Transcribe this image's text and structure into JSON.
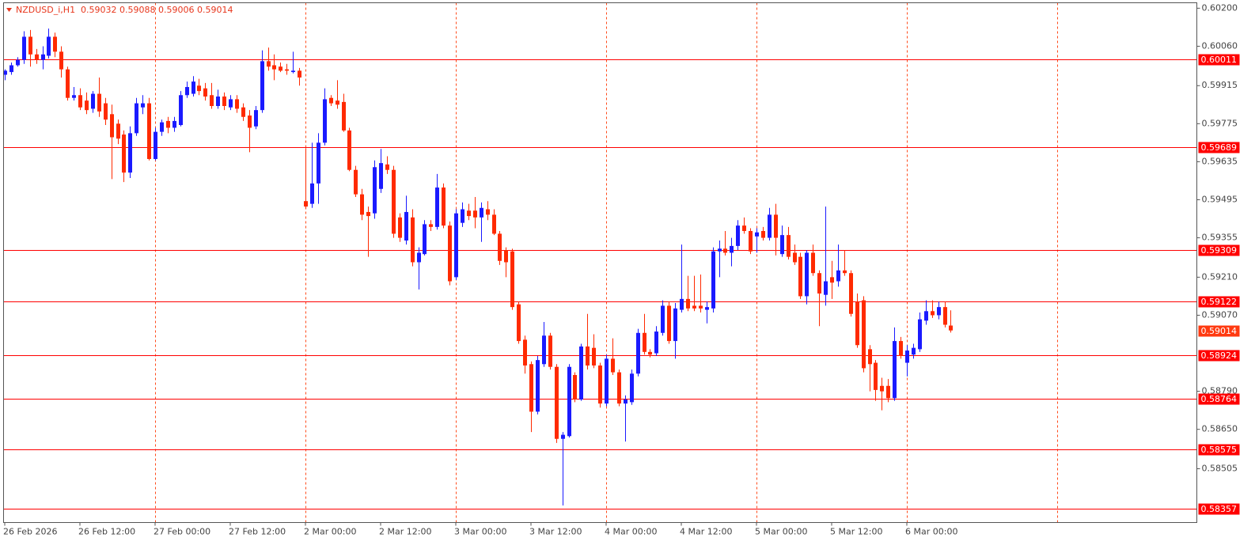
{
  "chart_data": {
    "type": "candlestick",
    "title": "NZDUSD_i,H1  0.59032 0.59088 0.59006 0.59014",
    "up_color": "#1a1aff",
    "down_color": "#ff2a00",
    "grid_color": "#ff4a1a",
    "level_color": "#ff0000",
    "last_price": 0.59014,
    "last_price_color": "#ff3a10",
    "levels": [
      0.60011,
      0.59689,
      0.59309,
      0.59122,
      0.58924,
      0.58764,
      0.58575,
      0.58357
    ],
    "ylim": [
      0.58307,
      0.6022
    ],
    "yticks": [
      {
        "value": 0.602,
        "label": "0.60200"
      },
      {
        "value": 0.6006,
        "label": "0.60060"
      },
      0.59915,
      0.59775,
      0.59635,
      0.59495,
      0.59355,
      {
        "value": 0.5921,
        "label": "0.59210"
      },
      {
        "value": 0.5907,
        "label": "0.59070"
      },
      {
        "value": 0.5879,
        "label": "0.58790"
      },
      {
        "value": 0.5865,
        "label": "0.58650"
      },
      0.58505
    ],
    "categories": [
      "26 Feb 2026",
      null,
      null,
      null,
      null,
      null,
      null,
      null,
      null,
      null,
      null,
      null,
      "26 Feb 12:00",
      null,
      null,
      null,
      null,
      null,
      null,
      null,
      null,
      null,
      null,
      null,
      "27 Feb 00:00",
      null,
      null,
      null,
      null,
      null,
      null,
      null,
      null,
      null,
      null,
      null,
      "27 Feb 12:00",
      null,
      null,
      null,
      null,
      null,
      null,
      null,
      null,
      null,
      null,
      null,
      "2 Mar 00:00",
      null,
      null,
      null,
      null,
      null,
      null,
      null,
      null,
      null,
      null,
      null,
      "2 Mar 12:00",
      null,
      null,
      null,
      null,
      null,
      null,
      null,
      null,
      null,
      null,
      null,
      "3 Mar 00:00",
      null,
      null,
      null,
      null,
      null,
      null,
      null,
      null,
      null,
      null,
      null,
      "3 Mar 12:00",
      null,
      null,
      null,
      null,
      null,
      null,
      null,
      null,
      null,
      null,
      null,
      "4 Mar 00:00",
      null,
      null,
      null,
      null,
      null,
      null,
      null,
      null,
      null,
      null,
      null,
      "4 Mar 12:00",
      null,
      null,
      null,
      null,
      null,
      null,
      null,
      null,
      null,
      null,
      null,
      "5 Mar 00:00",
      null,
      null,
      null,
      null,
      null,
      null,
      null,
      null,
      null,
      null,
      null,
      "5 Mar 12:00",
      null,
      null,
      null,
      null,
      null,
      null,
      null,
      null,
      null,
      null,
      null,
      "6 Mar 00:00",
      null,
      null,
      null,
      null,
      null,
      null,
      null
    ],
    "open": [
      0.59955,
      0.59965,
      0.5999,
      0.6001,
      0.60095,
      0.6003,
      0.6001,
      0.60025,
      0.60095,
      0.6004,
      0.59975,
      0.5987,
      0.5988,
      0.5986,
      0.5983,
      0.59885,
      0.5985,
      0.5981,
      0.59775,
      0.59735,
      0.59595,
      0.5974,
      0.59835,
      0.5985,
      0.59645,
      0.59745,
      0.59785,
      0.5976,
      0.5977,
      0.5988,
      0.59885,
      0.59915,
      0.59905,
      0.5988,
      0.5984,
      0.59875,
      0.59835,
      0.59865,
      0.59835,
      0.59805,
      0.59765,
      0.59825,
      0.60005,
      0.5999,
      0.59985,
      0.59975,
      0.59965,
      0.5997,
      0.5949,
      0.5948,
      0.59555,
      0.59705,
      0.5987,
      0.5986,
      0.59855,
      0.5975,
      0.59605,
      0.59515,
      0.5945,
      0.59445,
      0.59535,
      0.59625,
      0.59605,
      0.5943,
      0.59345,
      0.5943,
      0.59265,
      0.59295,
      0.59405,
      0.59395,
      0.5954,
      0.594,
      0.5921,
      0.5941,
      0.59455,
      0.59455,
      0.5943,
      0.5946,
      0.5944,
      0.5937,
      0.5931,
      0.59305,
      0.5911,
      0.5898,
      0.5889,
      0.58715,
      0.5889,
      0.58995,
      0.5888,
      0.58615,
      0.58625,
      0.5885,
      0.5876,
      0.58955,
      0.5895,
      0.58885,
      0.58745,
      0.5891,
      0.5886,
      0.58745,
      0.5875,
      0.58855,
      0.59005,
      0.58935,
      0.5893,
      0.59005,
      0.59105,
      0.58975,
      0.5909,
      0.5913,
      0.59105,
      0.59105,
      0.5909,
      0.59095,
      0.59305,
      0.59315,
      0.593,
      0.59325,
      0.594,
      0.5938,
      0.5936,
      0.5938,
      0.59355,
      0.5944,
      0.59295,
      0.59365,
      0.593,
      0.59285,
      0.5914,
      0.593,
      0.59225,
      0.59145,
      0.5921,
      0.59195,
      0.59235,
      0.59225,
      0.5912,
      0.59125,
      0.58945,
      0.58895,
      0.5881,
      0.5881,
      0.58765,
      0.58975,
      0.58895,
      0.58925,
      0.58945,
      0.5905,
      0.59085,
      0.5907,
      0.591,
      0.59032
    ],
    "high": [
      0.59975,
      0.6,
      0.6002,
      0.60115,
      0.6012,
      0.6005,
      0.6006,
      0.60125,
      0.6011,
      0.6006,
      0.59985,
      0.5991,
      0.59905,
      0.5989,
      0.59895,
      0.59945,
      0.5987,
      0.59845,
      0.5979,
      0.5975,
      0.59765,
      0.5987,
      0.5988,
      0.5987,
      0.5976,
      0.5979,
      0.598,
      0.598,
      0.59895,
      0.5993,
      0.5995,
      0.5994,
      0.59925,
      0.59925,
      0.599,
      0.5989,
      0.5988,
      0.5988,
      0.5985,
      0.59825,
      0.5984,
      0.60045,
      0.60055,
      0.6003,
      0.6,
      0.59995,
      0.6004,
      0.5998,
      0.59685,
      0.59705,
      0.5974,
      0.59905,
      0.5988,
      0.59935,
      0.59885,
      0.5976,
      0.5962,
      0.59535,
      0.5947,
      0.5964,
      0.59682,
      0.59655,
      0.5962,
      0.59445,
      0.5951,
      0.5946,
      0.5932,
      0.5942,
      0.5942,
      0.5959,
      0.59555,
      0.59415,
      0.5946,
      0.59485,
      0.5948,
      0.59505,
      0.59485,
      0.5949,
      0.5946,
      0.5938,
      0.5932,
      0.59315,
      0.5912,
      0.58995,
      0.589,
      0.5892,
      0.59045,
      0.59005,
      0.5889,
      0.5864,
      0.5889,
      0.5886,
      0.58965,
      0.59075,
      0.59,
      0.58895,
      0.58925,
      0.58985,
      0.5887,
      0.58775,
      0.5887,
      0.5902,
      0.59075,
      0.58945,
      0.5903,
      0.59125,
      0.5912,
      0.59115,
      0.5933,
      0.59215,
      0.59215,
      0.5922,
      0.5912,
      0.5932,
      0.59345,
      0.5938,
      0.59355,
      0.5942,
      0.5943,
      0.5939,
      0.5939,
      0.59395,
      0.59465,
      0.5948,
      0.594,
      0.59395,
      0.5933,
      0.593,
      0.5931,
      0.5933,
      0.59235,
      0.5947,
      0.5927,
      0.5933,
      0.5931,
      0.59235,
      0.5915,
      0.5914,
      0.5896,
      0.58905,
      0.5884,
      0.58835,
      0.59025,
      0.5899,
      0.5896,
      0.58965,
      0.5908,
      0.59125,
      0.59125,
      0.5912,
      0.5912,
      0.59088
    ],
    "low": [
      0.59935,
      0.59955,
      0.59985,
      0.59995,
      0.59985,
      0.59995,
      0.59975,
      0.60015,
      0.6002,
      0.59945,
      0.5986,
      0.5986,
      0.59825,
      0.5981,
      0.59815,
      0.598,
      0.5977,
      0.59571,
      0.597,
      0.5956,
      0.59575,
      0.5973,
      0.5981,
      0.5964,
      0.5964,
      0.5973,
      0.5974,
      0.59745,
      0.59765,
      0.5987,
      0.59875,
      0.5988,
      0.5986,
      0.5983,
      0.5983,
      0.59825,
      0.59825,
      0.59815,
      0.59785,
      0.5967,
      0.59755,
      0.59815,
      0.5997,
      0.59935,
      0.59965,
      0.59955,
      0.5996,
      0.59915,
      0.5946,
      0.59465,
      0.5948,
      0.59695,
      0.5984,
      0.5983,
      0.59745,
      0.596,
      0.59505,
      0.5942,
      0.59285,
      0.59425,
      0.5952,
      0.5959,
      0.59355,
      0.5934,
      0.5933,
      0.5925,
      0.59165,
      0.5929,
      0.5938,
      0.59385,
      0.5939,
      0.5918,
      0.592,
      0.59395,
      0.5942,
      0.5939,
      0.5934,
      0.5942,
      0.59365,
      0.59255,
      0.5921,
      0.5909,
      0.58965,
      0.58855,
      0.5864,
      0.58705,
      0.5888,
      0.5887,
      0.586,
      0.5837,
      0.5862,
      0.5875,
      0.58755,
      0.5887,
      0.58875,
      0.5873,
      0.58735,
      0.5885,
      0.58735,
      0.58605,
      0.5874,
      0.58845,
      0.58925,
      0.58915,
      0.5892,
      0.58995,
      0.58965,
      0.5891,
      0.5908,
      0.59085,
      0.59085,
      0.5908,
      0.5904,
      0.5908,
      0.5921,
      0.5929,
      0.5925,
      0.5931,
      0.5937,
      0.59295,
      0.593,
      0.59345,
      0.59345,
      0.5929,
      0.59285,
      0.59275,
      0.59255,
      0.5913,
      0.5911,
      0.59215,
      0.5903,
      0.59105,
      0.5913,
      0.59175,
      0.59215,
      0.59065,
      0.5895,
      0.5886,
      0.5879,
      0.58755,
      0.5872,
      0.5875,
      0.58755,
      0.5891,
      0.58845,
      0.5891,
      0.58935,
      0.59035,
      0.5906,
      0.59055,
      0.59025,
      0.59006
    ],
    "close": [
      0.5997,
      0.5999,
      0.6001,
      0.60095,
      0.6003,
      0.6001,
      0.6003,
      0.60095,
      0.6004,
      0.59975,
      0.5987,
      0.5988,
      0.59835,
      0.59825,
      0.59885,
      0.5982,
      0.5979,
      0.59725,
      0.5972,
      0.59595,
      0.5974,
      0.5985,
      0.5985,
      0.59645,
      0.59745,
      0.5978,
      0.5976,
      0.59785,
      0.5988,
      0.5991,
      0.5993,
      0.59895,
      0.59875,
      0.5984,
      0.59875,
      0.5984,
      0.59865,
      0.5983,
      0.598,
      0.5976,
      0.59825,
      0.60005,
      0.59985,
      0.59975,
      0.5997,
      0.5997,
      0.5997,
      0.59945,
      0.5947,
      0.59555,
      0.59705,
      0.59865,
      0.5985,
      0.59845,
      0.5975,
      0.59605,
      0.59515,
      0.5944,
      0.59435,
      0.59615,
      0.5963,
      0.59605,
      0.5937,
      0.59355,
      0.5945,
      0.59265,
      0.593,
      0.59405,
      0.59395,
      0.5954,
      0.594,
      0.59195,
      0.59445,
      0.5946,
      0.59435,
      0.5943,
      0.59465,
      0.5944,
      0.5937,
      0.5927,
      0.59265,
      0.591,
      0.58975,
      0.58885,
      0.58715,
      0.58905,
      0.58995,
      0.5888,
      0.58615,
      0.5863,
      0.5888,
      0.5876,
      0.58955,
      0.58885,
      0.58885,
      0.58745,
      0.5891,
      0.5886,
      0.58745,
      0.5876,
      0.58855,
      0.59005,
      0.58935,
      0.58925,
      0.5901,
      0.59105,
      0.58975,
      0.59095,
      0.5913,
      0.59095,
      0.59095,
      0.59095,
      0.591,
      0.59305,
      0.59315,
      0.593,
      0.59325,
      0.594,
      0.5938,
      0.59305,
      0.59375,
      0.59355,
      0.5944,
      0.59355,
      0.59365,
      0.59285,
      0.59265,
      0.5914,
      0.593,
      0.59225,
      0.5915,
      0.59195,
      0.5919,
      0.59235,
      0.59225,
      0.59075,
      0.5896,
      0.58875,
      0.5889,
      0.58795,
      0.5879,
      0.58765,
      0.58975,
      0.5892,
      0.5894,
      0.5895,
      0.59055,
      0.59085,
      0.5907,
      0.591,
      0.59035,
      0.59014
    ]
  }
}
